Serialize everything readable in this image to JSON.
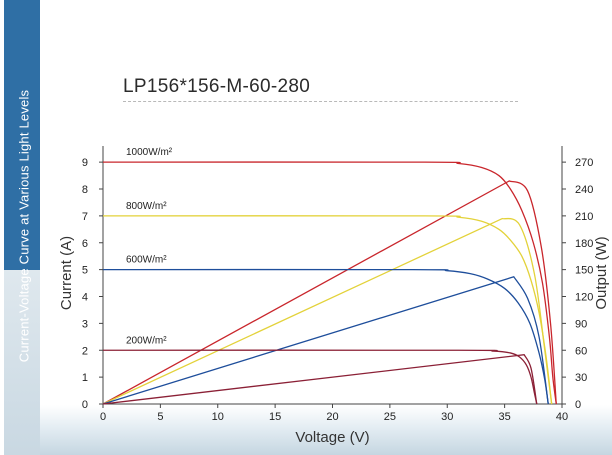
{
  "sidebar": {
    "text": "Current-Voltage Curve at Various Light Levels"
  },
  "chart_data": {
    "type": "line",
    "title": "LP156*156-M-60-280",
    "xlabel": "Voltage (V)",
    "ylabel": "Current (A)",
    "y2label": "Output (W)",
    "xlim": [
      0,
      40
    ],
    "ylim": [
      0,
      9.6
    ],
    "y2lim": [
      0,
      288
    ],
    "xticks": [
      0,
      5,
      10,
      15,
      20,
      25,
      30,
      35,
      40
    ],
    "yticks": [
      0,
      1,
      2,
      3,
      4,
      5,
      6,
      7,
      8,
      9
    ],
    "y2ticks": [
      0,
      30,
      60,
      90,
      120,
      150,
      180,
      210,
      240,
      270
    ],
    "grid": false,
    "series": [
      {
        "name": "1000W/m²",
        "color": "#c9262c",
        "current": [
          [
            0,
            9.0
          ],
          [
            28,
            9.0
          ],
          [
            31,
            8.95
          ],
          [
            33,
            8.8
          ],
          [
            34.5,
            8.5
          ],
          [
            35.5,
            8.0
          ],
          [
            36.5,
            7.2
          ],
          [
            37.5,
            6.0
          ],
          [
            38.3,
            4.5
          ],
          [
            38.9,
            2.5
          ],
          [
            39.2,
            1.0
          ],
          [
            39.5,
            0
          ]
        ],
        "power": [
          [
            0,
            0
          ],
          [
            35.4,
            249
          ],
          [
            37,
            238
          ],
          [
            38.2,
            175
          ],
          [
            39,
            90
          ],
          [
            39.5,
            0
          ]
        ]
      },
      {
        "name": "800W/m²",
        "color": "#e3d23a",
        "current": [
          [
            0,
            7.0
          ],
          [
            28,
            7.0
          ],
          [
            31,
            6.95
          ],
          [
            33,
            6.8
          ],
          [
            34.5,
            6.5
          ],
          [
            35.5,
            6.1
          ],
          [
            36.5,
            5.5
          ],
          [
            37.3,
            4.6
          ],
          [
            38,
            3.4
          ],
          [
            38.6,
            1.8
          ],
          [
            39.1,
            0
          ]
        ],
        "power": [
          [
            0,
            0
          ],
          [
            34.8,
            207
          ],
          [
            36.3,
            200
          ],
          [
            37.6,
            145
          ],
          [
            38.5,
            60
          ],
          [
            39.1,
            0
          ]
        ]
      },
      {
        "name": "600W/m²",
        "color": "#1e4e9b",
        "current": [
          [
            0,
            5.0
          ],
          [
            27,
            5.0
          ],
          [
            30,
            4.96
          ],
          [
            32,
            4.85
          ],
          [
            33.5,
            4.65
          ],
          [
            35,
            4.3
          ],
          [
            36.2,
            3.75
          ],
          [
            37.2,
            3.0
          ],
          [
            38,
            1.9
          ],
          [
            38.5,
            0.9
          ],
          [
            38.8,
            0
          ]
        ],
        "power": [
          [
            0,
            0
          ],
          [
            35.8,
            142
          ],
          [
            37,
            118
          ],
          [
            38,
            75
          ],
          [
            38.8,
            0
          ]
        ]
      },
      {
        "name": "200W/m²",
        "color": "#8b2036",
        "current": [
          [
            0,
            2.0
          ],
          [
            31,
            2.0
          ],
          [
            34,
            1.97
          ],
          [
            35.5,
            1.9
          ],
          [
            36.3,
            1.75
          ],
          [
            36.9,
            1.45
          ],
          [
            37.3,
            1.0
          ],
          [
            37.6,
            0.4
          ],
          [
            37.8,
            0
          ]
        ],
        "power": [
          [
            0,
            0
          ],
          [
            36.7,
            55
          ],
          [
            37.3,
            40
          ],
          [
            37.8,
            0
          ]
        ]
      }
    ]
  }
}
